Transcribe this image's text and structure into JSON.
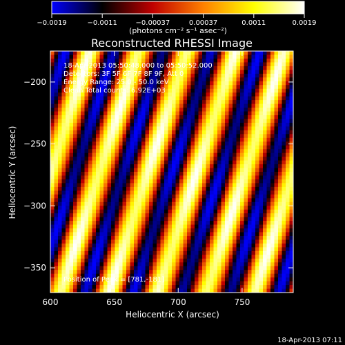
{
  "chart_data": {
    "type": "heatmap",
    "title": "Reconstructed RHESSI Image",
    "xlabel": "Heliocentric X (arcsec)",
    "ylabel": "Heliocentric Y (arcsec)",
    "xlim": [
      600,
      790
    ],
    "ylim": [
      -370,
      -175
    ],
    "x_ticks": [
      600,
      650,
      700,
      750
    ],
    "y_ticks": [
      -200,
      -250,
      -300,
      -350
    ],
    "colorbar": {
      "range": [
        -0.0019,
        0.0019
      ],
      "tick_labels": [
        "-0.0019",
        "-0.0011",
        "-0.00037",
        "0.00037",
        "0.0011",
        "0.0019"
      ],
      "units_label": "(photons cm⁻² s⁻¹ asec⁻²)",
      "colormap": [
        "#0000ff",
        "#000000",
        "#c00000",
        "#ff8000",
        "#ffff00",
        "#ffffff"
      ]
    },
    "pattern": {
      "description_type": "diagonal fringe",
      "fringe_period_x_arcsec": 38,
      "slope_y_per_x": 3.2
    },
    "annotations": [
      "18-Apr-2013 05:50:48.000 to 05:50:52.000",
      "Detectors: 3F 5F 6F 7F 8F 9F, Att 0",
      "Energy Range: 25.0 - 50.0 keV",
      "Clean    Total counts: 6.92E+03",
      "Position of Peak = [781,-181]"
    ],
    "timestamp": "18-Apr-2013 07:11"
  }
}
